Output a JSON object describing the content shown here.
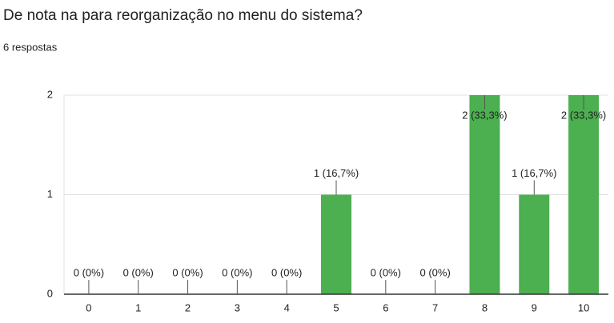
{
  "chart_data": {
    "type": "bar",
    "title": "De nota na para reorganização no menu do sistema?",
    "subtitle": "6 respostas",
    "categories": [
      "0",
      "1",
      "2",
      "3",
      "4",
      "5",
      "6",
      "7",
      "8",
      "9",
      "10"
    ],
    "values": [
      0,
      0,
      0,
      0,
      0,
      1,
      0,
      0,
      2,
      1,
      2
    ],
    "value_labels": [
      "0 (0%)",
      "0 (0%)",
      "0 (0%)",
      "0 (0%)",
      "0 (0%)",
      "1 (16,7%)",
      "0 (0%)",
      "0 (0%)",
      "2 (33,3%)",
      "1 (16,7%)",
      "2 (33,3%)"
    ],
    "color": "#4caf50",
    "ylim": [
      0,
      2
    ],
    "yticks": [
      0,
      1,
      2
    ],
    "grid": true
  }
}
